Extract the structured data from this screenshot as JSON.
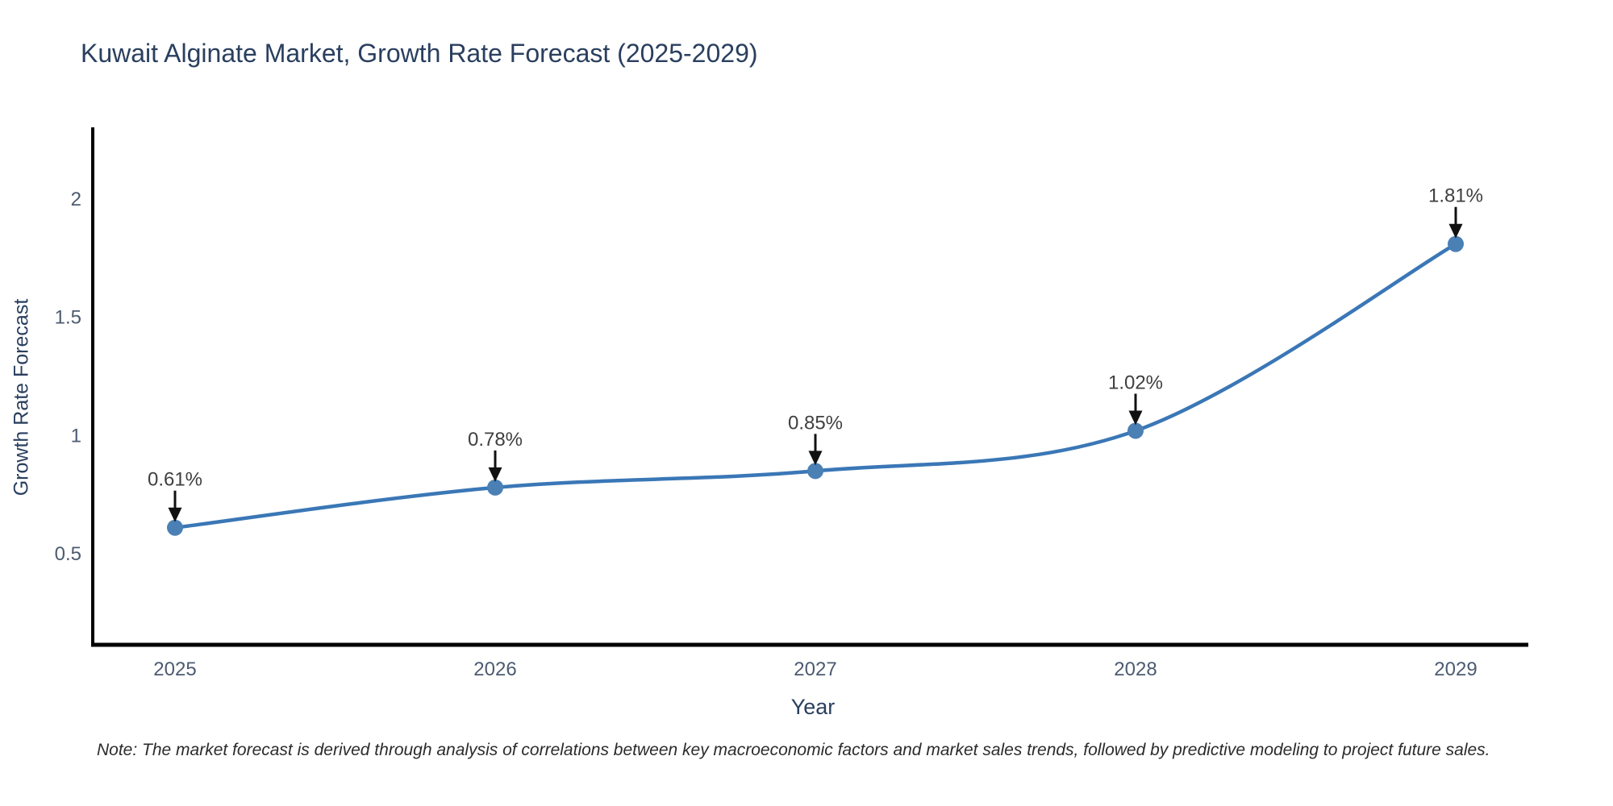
{
  "title": {
    "text": "Kuwait Alginate Market, Growth Rate Forecast (2025-2029)",
    "color": "#2a3f5f"
  },
  "note": {
    "text": "Note: The market forecast is derived through analysis of correlations between key macroeconomic factors and market sales trends, followed by predictive modeling to project future sales."
  },
  "chart_data": {
    "type": "line",
    "title": "Kuwait Alginate Market, Growth Rate Forecast (2025-2029)",
    "xlabel": "Year",
    "ylabel": "Growth Rate Forecast",
    "categories": [
      "2025",
      "2026",
      "2027",
      "2028",
      "2029"
    ],
    "series": [
      {
        "name": "Growth Rate Forecast",
        "values": [
          0.61,
          0.78,
          0.85,
          1.02,
          1.81
        ]
      }
    ],
    "point_labels": [
      "0.61%",
      "0.78%",
      "0.85%",
      "1.02%",
      "1.81%"
    ],
    "yticks": [
      0.5,
      1,
      1.5,
      2
    ],
    "ytick_labels": [
      "0.5",
      "1",
      "1.5",
      "2"
    ],
    "ylim": [
      0.1,
      2.3
    ],
    "grid": false,
    "legend": false,
    "curve": "spline",
    "colors": {
      "line": "#3a77b6",
      "marker": "#4b80b5",
      "axis": "#000000",
      "tick_label": "#4d5b70",
      "annotation_text": "#3f3f3f",
      "annotation_arrow": "#111111"
    }
  }
}
